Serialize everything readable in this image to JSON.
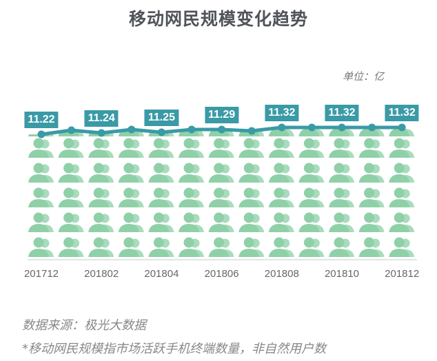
{
  "header": {
    "title": "移动网民规模变化趋势",
    "unit": "单位：亿"
  },
  "footer": {
    "source": "数据来源：极光大数据",
    "note": "*移动网民规模指市场活跃手机终端数量，非自然用户数"
  },
  "colors": {
    "line": "#3a9aa6",
    "icon": "#8fd0a8",
    "label_bg": "#3a9aa6",
    "axis": "#d8dcdc"
  },
  "chart_data": {
    "type": "line",
    "title": "移动网民规模变化趋势",
    "xlabel": "",
    "ylabel": "单位：亿",
    "x": [
      "201712",
      "201801",
      "201802",
      "201803",
      "201804",
      "201805",
      "201806",
      "201807",
      "201808",
      "201809",
      "201810",
      "201811",
      "201812"
    ],
    "series": [
      {
        "name": "移动网民规模",
        "values": [
          11.22,
          11.28,
          11.24,
          11.29,
          11.25,
          11.29,
          11.29,
          11.27,
          11.32,
          11.32,
          11.32,
          11.32,
          11.32
        ]
      }
    ],
    "data_labels": [
      {
        "x": "201712",
        "label": "11.22"
      },
      {
        "x": "201802",
        "label": "11.24"
      },
      {
        "x": "201804",
        "label": "11.25"
      },
      {
        "x": "201806",
        "label": "11.29"
      },
      {
        "x": "201808",
        "label": "11.32"
      },
      {
        "x": "201810",
        "label": "11.32"
      },
      {
        "x": "201812",
        "label": "11.32"
      }
    ],
    "tick_labels": [
      "201712",
      "201802",
      "201804",
      "201806",
      "201808",
      "201810",
      "201812"
    ],
    "grid": false,
    "legend": "none",
    "fill": "pictogram (person icons)"
  }
}
